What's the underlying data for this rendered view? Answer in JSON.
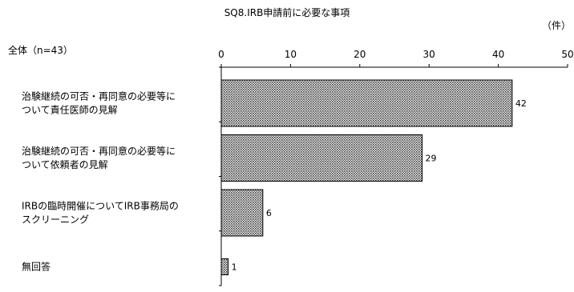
{
  "chart_data": {
    "type": "bar",
    "orientation": "horizontal",
    "title": "SQ8.IRB申請前に必要な事項",
    "unit": "（件）",
    "group_label": "全体（n=43）",
    "categories": [
      [
        "治験継続の可否・再同意の必要等に",
        "ついて責任医師の見解"
      ],
      [
        "治験継続の可否・再同意の必要等に",
        "ついて依頼者の見解"
      ],
      [
        "IRBの臨時開催についてIRB事務局の",
        "スクリーニング"
      ],
      [
        "無回答"
      ]
    ],
    "values": [
      42,
      29,
      6,
      1
    ],
    "data_labels": [
      "42",
      "29",
      "6",
      "1"
    ],
    "xlim": [
      0,
      50
    ],
    "xticks": [
      0,
      10,
      20,
      30,
      40,
      50
    ],
    "grid": false,
    "axis_position": "top",
    "bar_fill": "dotted-gray",
    "colors": {
      "bar_dot": "#3a3a3a",
      "bar_bg": "#ffffff",
      "axis": "#000000"
    }
  }
}
